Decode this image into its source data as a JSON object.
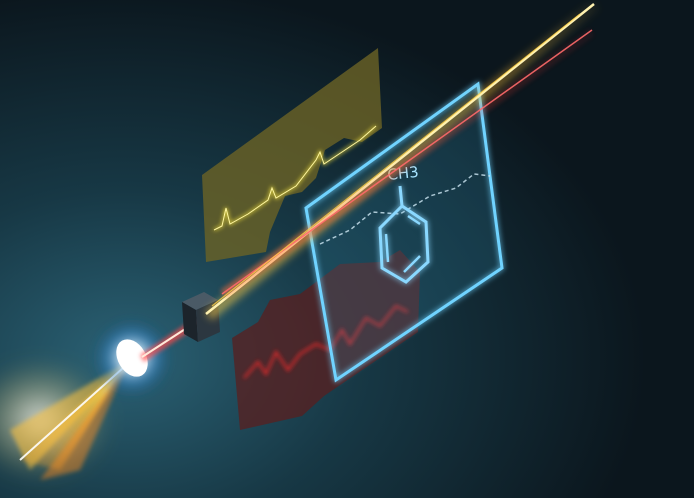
{
  "scene": {
    "description_free": true,
    "molecule": {
      "label": "CH3",
      "structure": "benzene-ring"
    },
    "colors": {
      "background_dark": "#0c1820",
      "background_teal": "#1f4d5e",
      "beam_yellow": "#ffd24a",
      "beam_red": "#ff3b3b",
      "panel_yellow": "#6b6326",
      "panel_red": "#5a1f1f",
      "panel_cyan": "#6fd3ff",
      "spectrum_yellow": "#f4e23a",
      "spectrum_red": "#ff2a2a"
    },
    "icons": [
      "crystal-icon",
      "laser-source-icon",
      "benzene-molecule-icon"
    ]
  }
}
